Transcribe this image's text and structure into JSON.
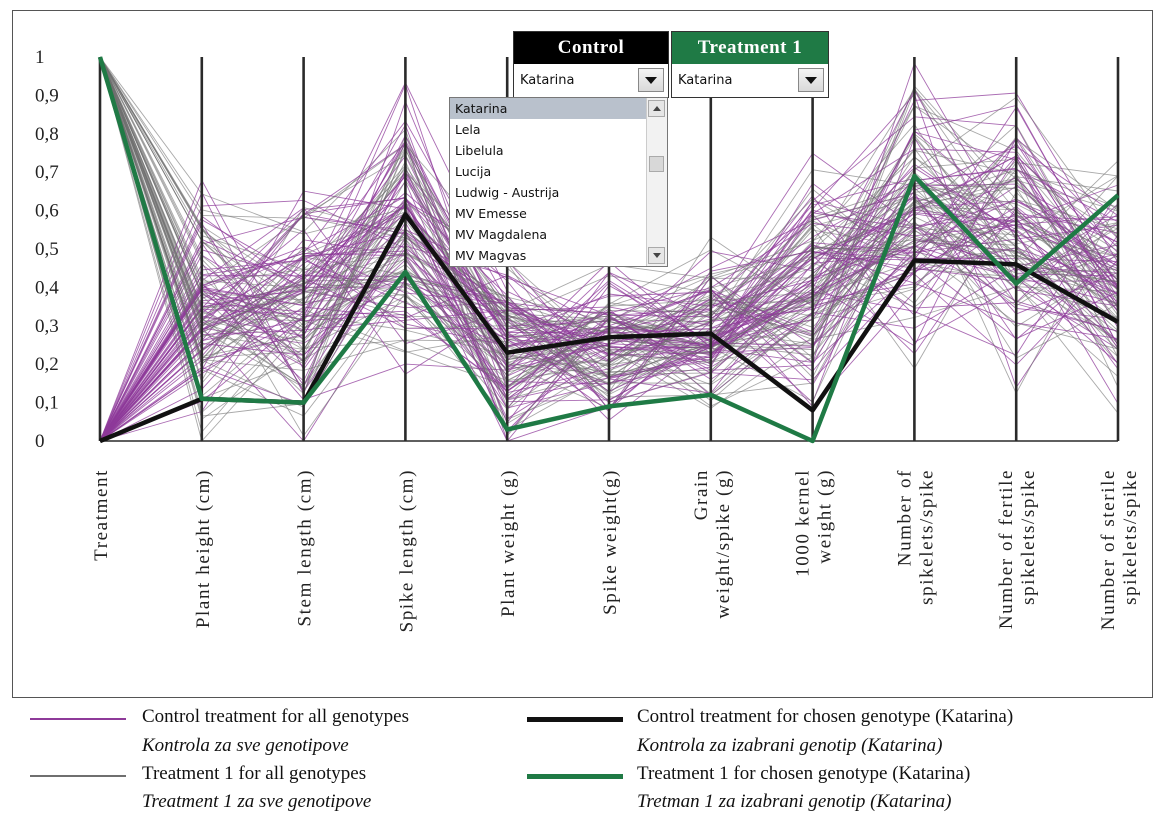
{
  "chart_data": {
    "type": "parallel-coordinates",
    "axes": [
      "Treatment",
      "Plant height (cm)",
      "Stem length (cm)",
      "Spike length (cm)",
      "Plant weight (g)",
      "Spike weight(g)",
      "Grain weight/spike (g)",
      "1000 kernel weight (g)",
      "Number of spikelets/spike",
      "Number of fertile spikelets/spike",
      "Number of sterile spikelets/spike"
    ],
    "axis_label_lines": [
      [
        "Treatment"
      ],
      [
        "Plant height (cm)"
      ],
      [
        "Stem length (cm)"
      ],
      [
        "Spike length (cm)"
      ],
      [
        "Plant weight (g)"
      ],
      [
        "Spike weight(g)"
      ],
      [
        "Grain",
        "weight/spike (g)"
      ],
      [
        "1000 kernel",
        "weight (g)"
      ],
      [
        "Number of",
        "spikelets/spike"
      ],
      [
        "Number of fertile",
        "spikelets/spike"
      ],
      [
        "Number of sterile",
        "spikelets/spike"
      ]
    ],
    "y_ticks": [
      "0",
      "0,1",
      "0,2",
      "0,3",
      "0,4",
      "0,5",
      "0,6",
      "0,7",
      "0,8",
      "0,9",
      "1"
    ],
    "ylim": [
      0,
      1
    ],
    "series": [
      {
        "name": "Control treatment for chosen genotype (Katarina)",
        "color": "#111111",
        "values": [
          0,
          0.11,
          0.1,
          0.59,
          0.23,
          0.27,
          0.28,
          0.08,
          0.47,
          0.46,
          0.31
        ]
      },
      {
        "name": "Treatment 1 for chosen genotype (Katarina)",
        "color": "#1f7a45",
        "values": [
          1,
          0.11,
          0.1,
          0.44,
          0.03,
          0.09,
          0.12,
          0.0,
          0.69,
          0.41,
          0.64
        ]
      }
    ],
    "background_series": [
      {
        "name": "Control treatment for all genotypes",
        "color": "#8e3a99"
      },
      {
        "name": "Treatment 1 for all genotypes",
        "color": "#6f6f6f"
      }
    ]
  },
  "controls": {
    "control_header": "Control",
    "control_header_color": "#000000",
    "control_value": "Katarina",
    "treatment_header": "Treatment 1",
    "treatment_header_color": "#1f7a45",
    "treatment_value": "Katarina",
    "dropdown_options": [
      "Katarina",
      "Lela",
      "Libelula",
      "Lucija",
      "Ludwig - Austrija",
      "MV Emesse",
      "MV Magdalena",
      "MV Magvas"
    ]
  },
  "legend": [
    {
      "label": "Control treatment for all genotypes",
      "sublabel": "Kontrola za sve genotipove",
      "color": "#8e3a99",
      "weight": "thin"
    },
    {
      "label": "Treatment 1 for all genotypes",
      "sublabel": "Treatment 1 za sve genotipove",
      "color": "#6f6f6f",
      "weight": "thin"
    },
    {
      "label": "Control treatment for chosen genotype (Katarina)",
      "sublabel": "Kontrola za izabrani genotip (Katarina)",
      "color": "#111111",
      "weight": "thick"
    },
    {
      "label": "Treatment 1 for chosen genotype (Katarina)",
      "sublabel": "Tretman 1 za izabrani genotip (Katarina)",
      "color": "#1f7a45",
      "weight": "thick"
    }
  ]
}
